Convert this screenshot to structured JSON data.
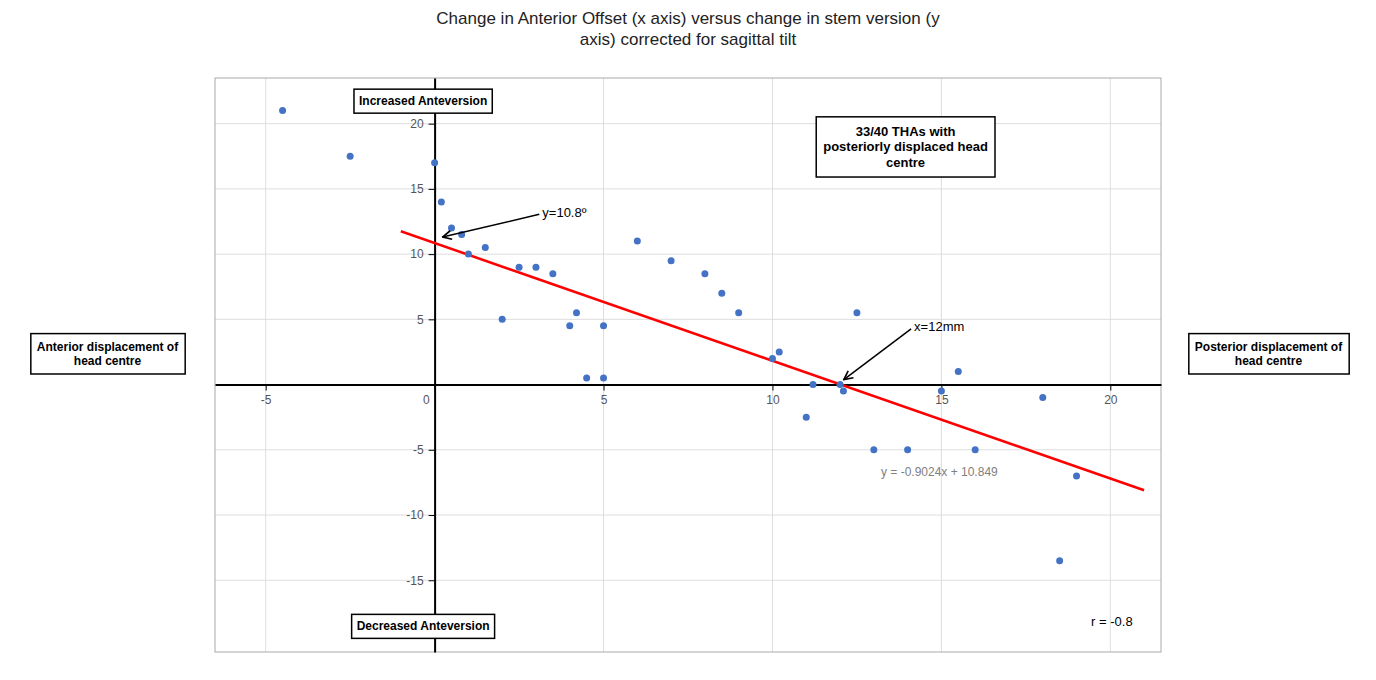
{
  "chart_data": {
    "type": "scatter",
    "title": "Change in Anterior Offset (x axis) versus change in stem version (y\naxis) corrected for sagittal tilt",
    "series": [
      {
        "type": "scatter",
        "color": "#4472c4",
        "x": [
          -4.5,
          -2.5,
          0.0,
          0.2,
          0.5,
          0.8,
          1.0,
          1.5,
          2.0,
          2.5,
          3.0,
          3.5,
          4.0,
          4.2,
          4.5,
          5.0,
          5.0,
          6.0,
          7.0,
          8.0,
          8.5,
          9.0,
          10.0,
          10.2,
          11.0,
          11.2,
          12.0,
          12.1,
          12.5,
          13.0,
          14.0,
          15.0,
          15.5,
          16.0,
          18.0,
          18.5,
          19.0
        ],
        "values": [
          21.0,
          17.5,
          17.0,
          14.0,
          12.0,
          11.5,
          10.0,
          10.5,
          5.0,
          9.0,
          9.0,
          8.5,
          4.5,
          5.5,
          0.5,
          0.5,
          4.5,
          11.0,
          9.5,
          8.5,
          7.0,
          5.5,
          2.0,
          2.5,
          -2.5,
          0.0,
          0.0,
          -0.5,
          5.5,
          -5.0,
          -5.0,
          -0.5,
          1.0,
          -5.0,
          -1.0,
          -13.5,
          -7.0
        ]
      },
      {
        "type": "line",
        "color": "red",
        "x": [
          -1.0,
          21.0
        ],
        "values": [
          11.7514,
          -8.1014
        ]
      }
    ],
    "xlim": [
      -6.5,
      21.5
    ],
    "ylim": [
      -20.5,
      23.5
    ],
    "xticks": [
      -5,
      0,
      5,
      10,
      15,
      20
    ],
    "yticks": [
      -15,
      -10,
      -5,
      5,
      10,
      15,
      20
    ],
    "grid": true,
    "annotations": [
      "y = -0.9024x + 10.849",
      "y=10.8º",
      "x=12mm",
      "33/40 THAs with\nposteriorly displaced head\ncentre",
      "Increased Anteversion",
      "Decreased Anteversion",
      "Anterior displacement of\nhead centre",
      "Posterior displacement of\nhead centre",
      "r = -0.8"
    ]
  }
}
